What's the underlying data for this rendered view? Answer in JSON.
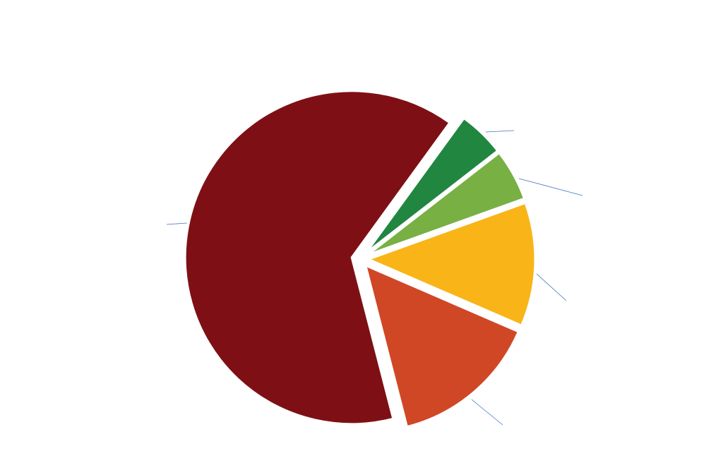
{
  "chart_data": {
    "type": "pie",
    "categories": [
      null,
      null,
      null,
      null,
      null
    ],
    "values": [
      4.5,
      5,
      12,
      14.5,
      64
    ],
    "colors": [
      "#218640",
      "#78b044",
      "#f9b418",
      "#d04726",
      "#7e1015"
    ]
  }
}
